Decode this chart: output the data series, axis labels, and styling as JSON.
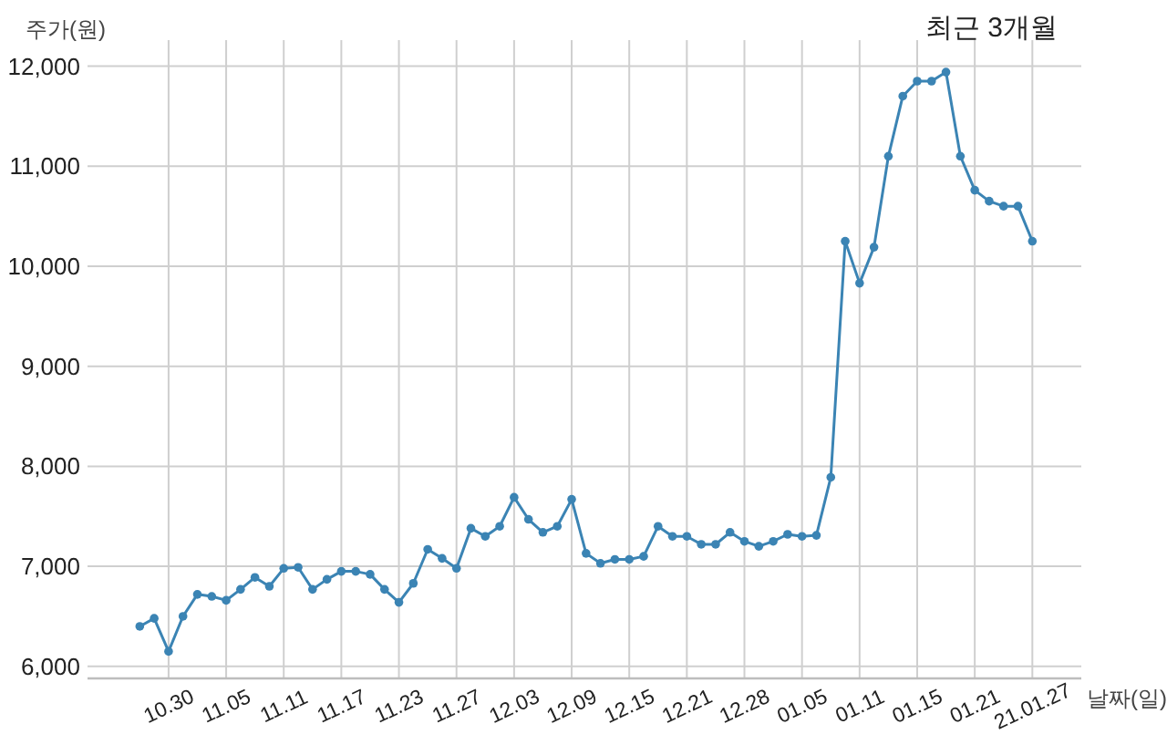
{
  "chart_data": {
    "type": "line",
    "title": "최근 3개월",
    "ylabel": "주가(원)",
    "xlabel": "날짜(일)",
    "categories": [
      null,
      null,
      "10.30",
      null,
      null,
      null,
      "11.05",
      null,
      null,
      null,
      "11.11",
      null,
      null,
      null,
      "11.17",
      null,
      null,
      null,
      "11.23",
      null,
      null,
      null,
      "11.27",
      null,
      null,
      null,
      "12.03",
      null,
      null,
      null,
      "12.09",
      null,
      null,
      null,
      "12.15",
      null,
      null,
      null,
      "12.21",
      null,
      null,
      null,
      "12.28",
      null,
      null,
      null,
      "01.05",
      null,
      null,
      null,
      "01.11",
      null,
      null,
      null,
      "01.15",
      null,
      null,
      null,
      "01.21",
      null,
      null,
      null,
      "21.01.27"
    ],
    "series": [
      {
        "color": "#3b84b4",
        "values": [
          6400,
          6480,
          6150,
          6500,
          6720,
          6700,
          6660,
          6770,
          6890,
          6800,
          6980,
          6990,
          6770,
          6870,
          6950,
          6950,
          6920,
          6770,
          6640,
          6830,
          7170,
          7080,
          6980,
          7380,
          7300,
          7400,
          7690,
          7470,
          7340,
          7400,
          7670,
          7130,
          7030,
          7070,
          7070,
          7100,
          7400,
          7300,
          7300,
          7220,
          7220,
          7340,
          7250,
          7200,
          7250,
          7320,
          7300,
          7310,
          7890,
          10250,
          9830,
          10190,
          11100,
          11700,
          11850,
          11850,
          11940,
          11100,
          10760,
          10650,
          10600,
          10600,
          10250
        ]
      }
    ],
    "ylim": [
      5880,
      12260
    ],
    "yticks": [
      {
        "value": 6000,
        "label": "6,000"
      },
      {
        "value": 7000,
        "label": "7,000"
      },
      {
        "value": 8000,
        "label": "8,000"
      },
      {
        "value": 9000,
        "label": "9,000"
      },
      {
        "value": 10000,
        "label": "10,000"
      },
      {
        "value": 11000,
        "label": "11,000"
      },
      {
        "value": 12000,
        "label": "12,000"
      }
    ],
    "grid": true,
    "marker": "circle",
    "line_style": "solid"
  }
}
